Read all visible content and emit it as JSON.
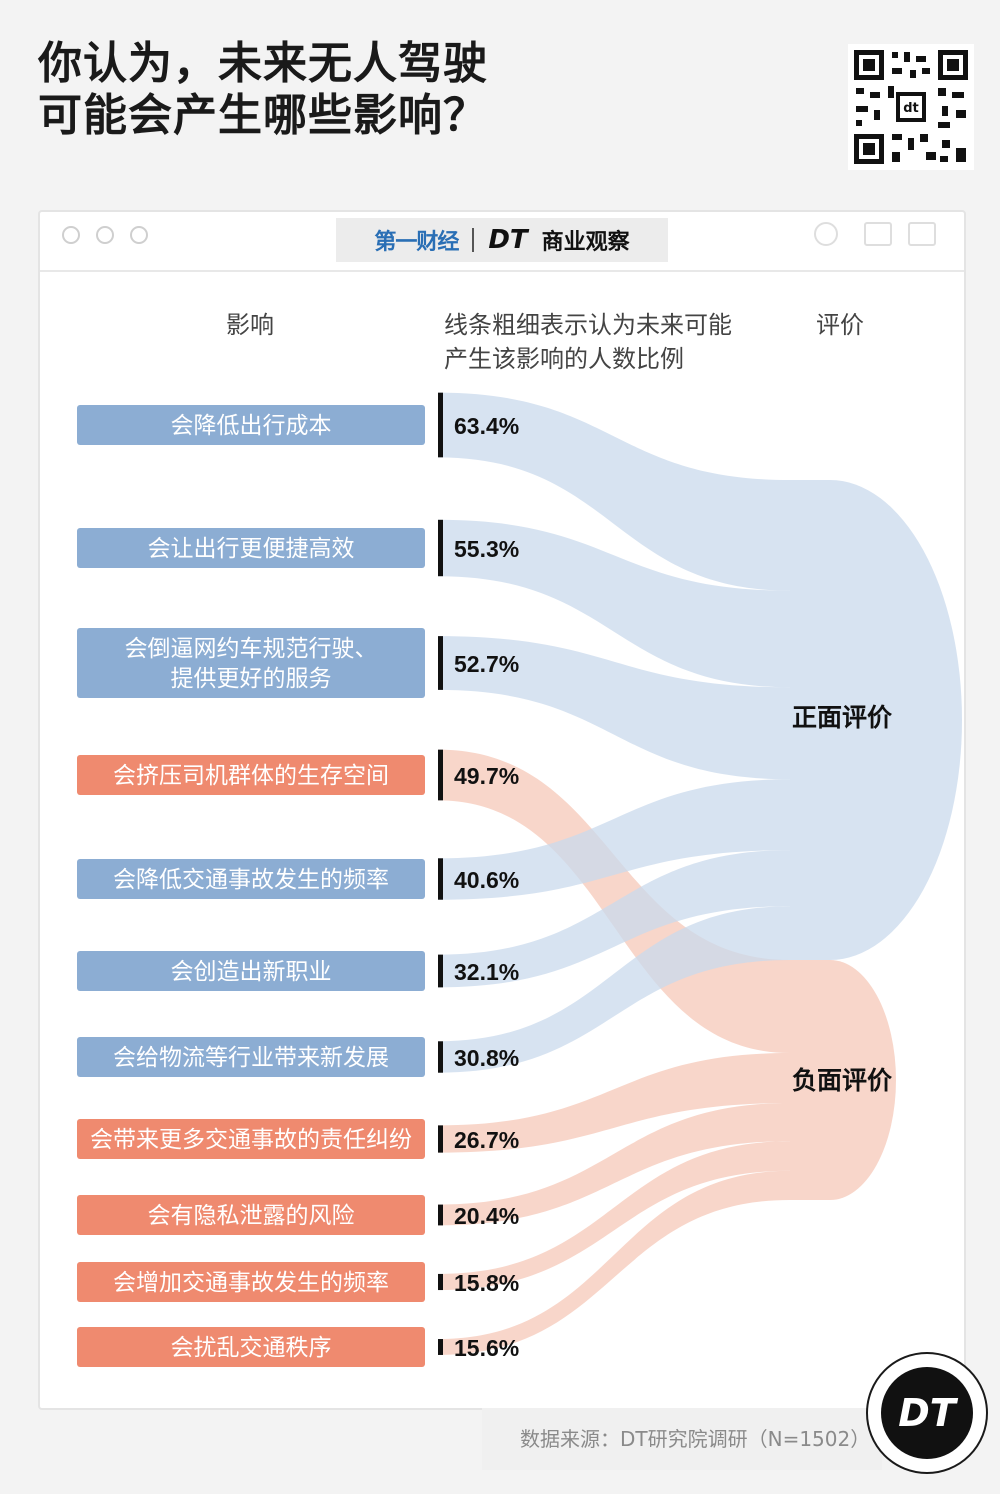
{
  "title": {
    "line1": "你认为，未来无人驾驶",
    "line2": "可能会产生哪些影响？"
  },
  "brand": {
    "left": "第一财经",
    "right_dt": "DT",
    "right_name": "商业观察"
  },
  "headers": {
    "impact": "影响",
    "thickness_line1": "线条粗细表示认为未来可能",
    "thickness_line2": "产生该影响的人数比例",
    "rating": "评价"
  },
  "source": "数据来源：DT研究院调研（N=1502）",
  "logo": "DT",
  "colors": {
    "positive": "#8cadd3",
    "positive_flow": "#c9d9ec",
    "negative": "#ef8a6f",
    "negative_flow": "#f5c8b8"
  },
  "chart_data": {
    "type": "sankey",
    "title": "你认为，未来无人驾驶可能会产生哪些影响？",
    "targets": [
      "正面评价",
      "负面评价"
    ],
    "items": [
      {
        "label": "会降低出行成本",
        "value": 63.4,
        "value_label": "63.4%",
        "category": "正面评价"
      },
      {
        "label": "会让出行更便捷高效",
        "value": 55.3,
        "value_label": "55.3%",
        "category": "正面评价"
      },
      {
        "label": "会倒逼网约车规范行驶、提供更好的服务",
        "label_lines": [
          "会倒逼网约车规范行驶、",
          "提供更好的服务"
        ],
        "value": 52.7,
        "value_label": "52.7%",
        "category": "正面评价"
      },
      {
        "label": "会挤压司机群体的生存空间",
        "value": 49.7,
        "value_label": "49.7%",
        "category": "负面评价"
      },
      {
        "label": "会降低交通事故发生的频率",
        "value": 40.6,
        "value_label": "40.6%",
        "category": "正面评价"
      },
      {
        "label": "会创造出新职业",
        "value": 32.1,
        "value_label": "32.1%",
        "category": "正面评价"
      },
      {
        "label": "会给物流等行业带来新发展",
        "value": 30.8,
        "value_label": "30.8%",
        "category": "正面评价"
      },
      {
        "label": "会带来更多交通事故的责任纠纷",
        "value": 26.7,
        "value_label": "26.7%",
        "category": "负面评价"
      },
      {
        "label": "会有隐私泄露的风险",
        "value": 20.4,
        "value_label": "20.4%",
        "category": "负面评价"
      },
      {
        "label": "会增加交通事故发生的频率",
        "value": 15.8,
        "value_label": "15.8%",
        "category": "负面评价"
      },
      {
        "label": "会扰乱交通秩序",
        "value": 15.6,
        "value_label": "15.6%",
        "category": "负面评价"
      }
    ]
  }
}
